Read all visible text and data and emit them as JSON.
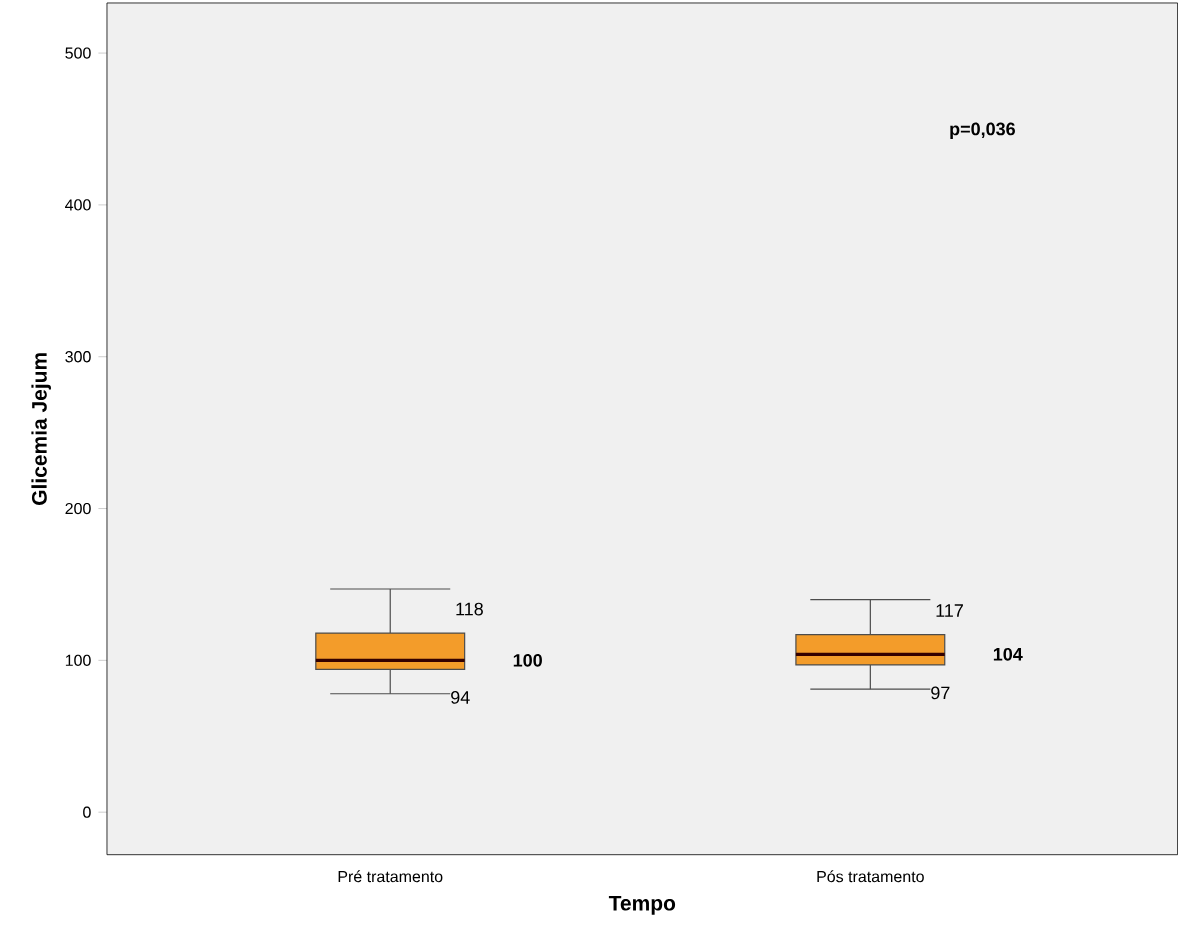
{
  "chart_data": {
    "type": "box",
    "xlabel": "Tempo",
    "ylabel": "Glicemia Jejum",
    "categories": [
      "Pré tratamento",
      "Pós tratamento"
    ],
    "boxes": [
      {
        "low": 78,
        "q1": 94,
        "median": 100,
        "q3": 118,
        "high": 147
      },
      {
        "low": 81,
        "q1": 97,
        "median": 104,
        "q3": 117,
        "high": 140
      }
    ],
    "color": "#f39c2a",
    "ylim": [
      -28,
      533
    ],
    "yticks": [
      0,
      100,
      200,
      300,
      400,
      500
    ],
    "annotations": [
      "118",
      "100",
      "94",
      "117",
      "104",
      "97",
      "p=0,036"
    ]
  }
}
